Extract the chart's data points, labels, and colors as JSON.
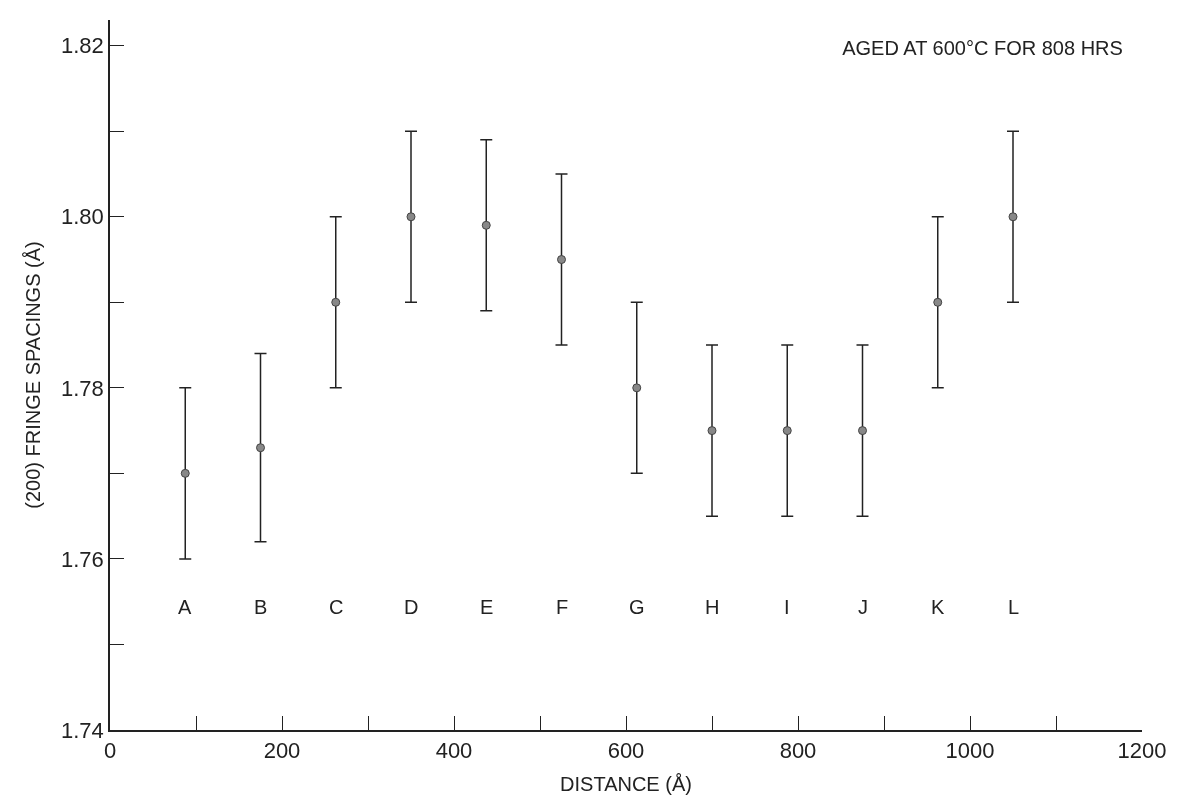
{
  "chart_data": {
    "type": "scatter",
    "title": "AGED AT 600°C FOR 808 HRS",
    "xlabel": "DISTANCE (Å)",
    "ylabel": "(200) FRINGE SPACINGS (Å)",
    "x": [
      87.5,
      175,
      262.5,
      350,
      437.5,
      525,
      612.5,
      700,
      787.5,
      875,
      962.5,
      1050
    ],
    "values": [
      1.77,
      1.773,
      1.79,
      1.8,
      1.799,
      1.795,
      1.78,
      1.775,
      1.775,
      1.775,
      1.79,
      1.8
    ],
    "errors": [
      0.01,
      0.011,
      0.01,
      0.01,
      0.01,
      0.01,
      0.01,
      0.01,
      0.01,
      0.01,
      0.01,
      0.01
    ],
    "color": "#888888",
    "marker": "circle",
    "legend": false,
    "xlim": [
      0,
      1200
    ],
    "ylim": [
      1.74,
      1.823
    ],
    "xticks": [
      0,
      {
        "value": 100,
        "label": null
      },
      200,
      {
        "value": 300,
        "label": null
      },
      400,
      {
        "value": 500,
        "label": null
      },
      600,
      {
        "value": 700,
        "label": null
      },
      800,
      {
        "value": 900,
        "label": null
      },
      1000,
      {
        "value": 1100,
        "label": null
      },
      1200
    ],
    "yticks": [
      {
        "value": 1.74,
        "label": "1.74"
      },
      {
        "value": 1.75,
        "label": null
      },
      {
        "value": 1.76,
        "label": "1.76"
      },
      {
        "value": 1.77,
        "label": null
      },
      {
        "value": 1.78,
        "label": "1.78"
      },
      {
        "value": 1.79,
        "label": null
      },
      {
        "value": 1.8,
        "label": "1.80"
      },
      {
        "value": 1.81,
        "label": null
      },
      {
        "value": 1.82,
        "label": "1.82"
      }
    ],
    "annotations": [
      "A",
      "B",
      "C",
      "D",
      "E",
      "F",
      "G",
      "H",
      "I",
      "J",
      "K",
      "L"
    ]
  }
}
